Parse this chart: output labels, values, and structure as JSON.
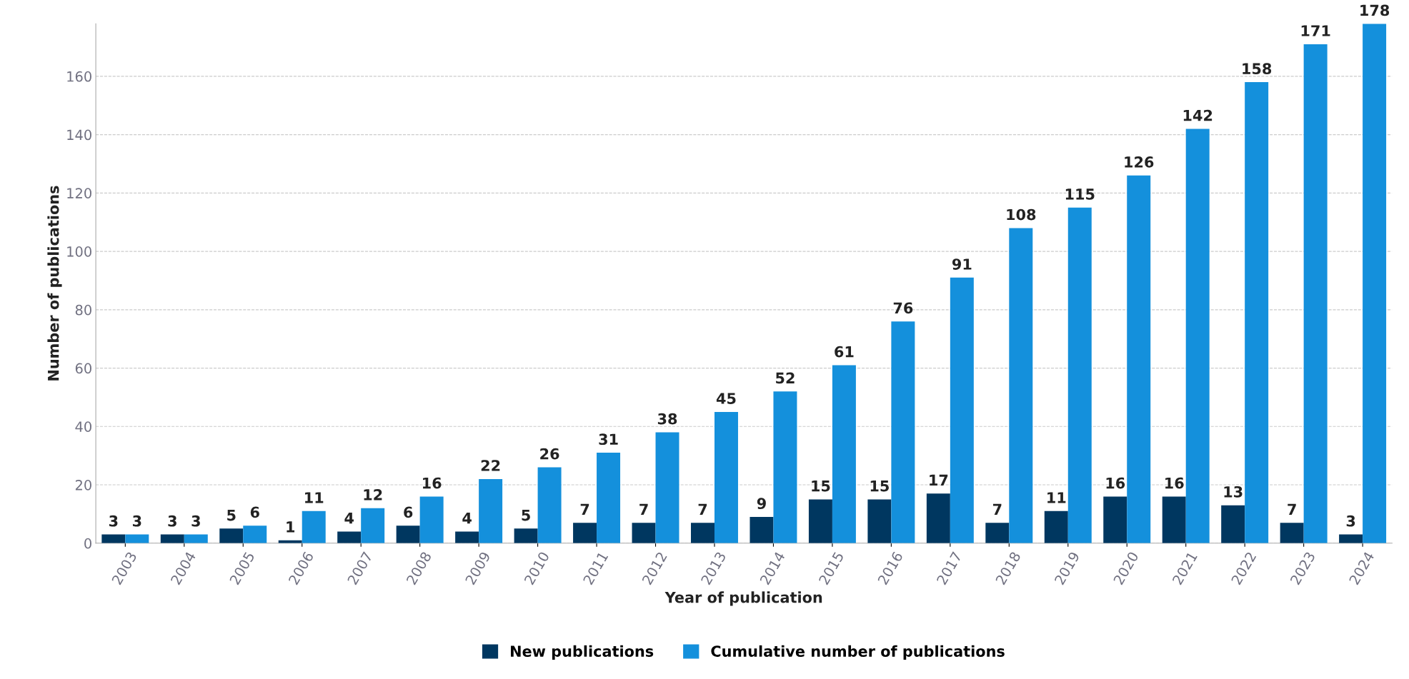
{
  "chart_data": {
    "type": "bar",
    "xlabel": "Year of publication",
    "ylabel": "Number of publications",
    "categories": [
      "2003",
      "2004",
      "2005",
      "2006",
      "2007",
      "2008",
      "2009",
      "2010",
      "2011",
      "2012",
      "2013",
      "2014",
      "2015",
      "2016",
      "2017",
      "2018",
      "2019",
      "2020",
      "2021",
      "2022",
      "2023",
      "2024"
    ],
    "series": [
      {
        "name": "New publications",
        "color": "#003760",
        "values": [
          3,
          3,
          5,
          1,
          4,
          6,
          4,
          5,
          7,
          7,
          7,
          9,
          15,
          15,
          17,
          7,
          11,
          16,
          16,
          13,
          7,
          3
        ]
      },
      {
        "name": "Cumulative number of publications",
        "color": "#1490dc",
        "values": [
          3,
          3,
          6,
          11,
          12,
          16,
          22,
          26,
          31,
          38,
          45,
          52,
          61,
          76,
          91,
          108,
          115,
          126,
          142,
          158,
          171,
          178
        ]
      }
    ],
    "ylim": [
      0,
      178
    ],
    "yticks": [
      0,
      20,
      40,
      60,
      80,
      100,
      120,
      140,
      160
    ],
    "grid": "y",
    "legend": "bottom",
    "data_labels": true
  }
}
